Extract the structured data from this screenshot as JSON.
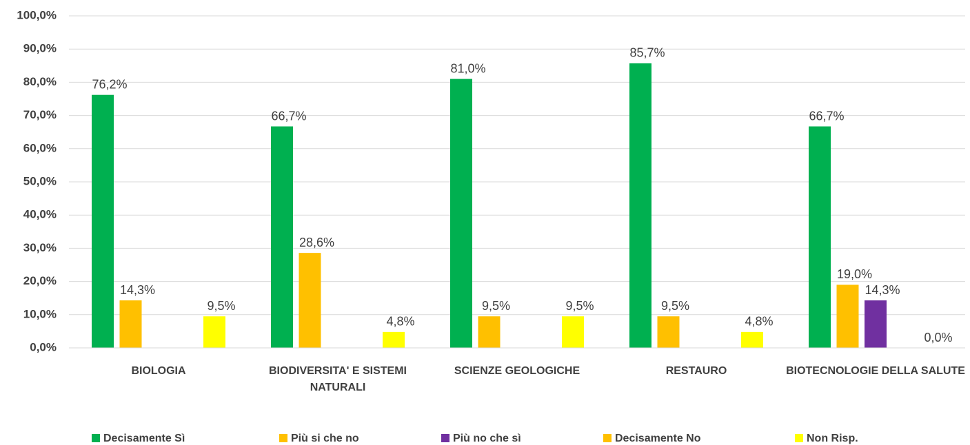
{
  "chart_data": {
    "type": "bar",
    "categories": [
      "BIOLOGIA",
      "BIODIVERSITA' E SISTEMI NATURALI",
      "SCIENZE GEOLOGICHE",
      "RESTAURO",
      "BIOTECNOLOGIE DELLA SALUTE"
    ],
    "series": [
      {
        "name": "Decisamente Sì",
        "color": "#00b050",
        "values": [
          76.2,
          66.7,
          81.0,
          85.7,
          66.7
        ],
        "value_labels": [
          "76,2%",
          "66,7%",
          "81,0%",
          "85,7%",
          "66,7%"
        ]
      },
      {
        "name": "Più si che no",
        "color": "#ffc000",
        "values": [
          14.3,
          28.6,
          9.5,
          9.5,
          19.0
        ],
        "value_labels": [
          "14,3%",
          "28,6%",
          "9,5%",
          "9,5%",
          "19,0%"
        ]
      },
      {
        "name": "Più no che sì",
        "color": "#7030a0",
        "values": [
          null,
          null,
          null,
          null,
          14.3
        ],
        "value_labels": [
          null,
          null,
          null,
          null,
          "14,3%"
        ]
      },
      {
        "name": "Decisamente No",
        "color": "#ffc000",
        "values": [
          null,
          null,
          null,
          null,
          null
        ],
        "value_labels": [
          null,
          null,
          null,
          null,
          null
        ]
      },
      {
        "name": "Non Risp.",
        "color": "#ffff00",
        "values": [
          9.5,
          4.8,
          9.5,
          4.8,
          0.0
        ],
        "value_labels": [
          "9,5%",
          "4,8%",
          "9,5%",
          "4,8%",
          "0,0%"
        ]
      }
    ],
    "ylim": [
      0,
      100
    ],
    "yticks": [
      {
        "value": 0,
        "label": "0,0%"
      },
      {
        "value": 10,
        "label": "10,0%"
      },
      {
        "value": 20,
        "label": "20,0%"
      },
      {
        "value": 30,
        "label": "30,0%"
      },
      {
        "value": 40,
        "label": "40,0%"
      },
      {
        "value": 50,
        "label": "50,0%"
      },
      {
        "value": 60,
        "label": "60,0%"
      },
      {
        "value": 70,
        "label": "70,0%"
      },
      {
        "value": 80,
        "label": "80,0%"
      },
      {
        "value": 90,
        "label": "90,0%"
      },
      {
        "value": 100,
        "label": "100,0%"
      }
    ],
    "grid": true,
    "legend": "bottom"
  }
}
